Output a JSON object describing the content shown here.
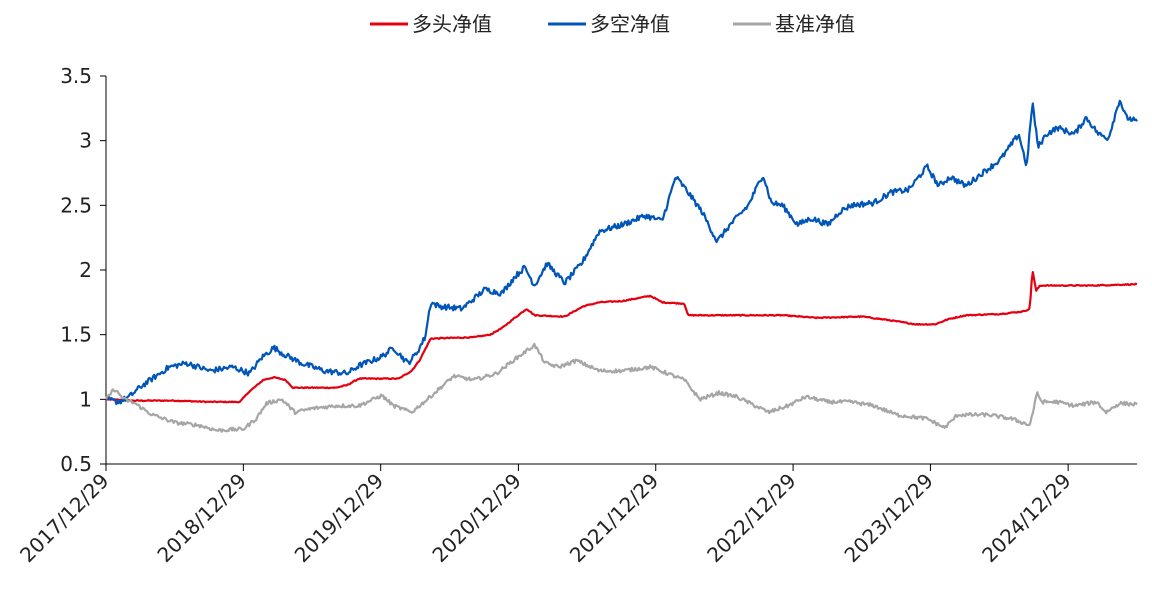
{
  "chart_data": {
    "type": "line",
    "title": "",
    "xlabel": "",
    "ylabel": "",
    "ylim": [
      0.5,
      3.5
    ],
    "yticks": [
      0.5,
      1,
      1.5,
      2,
      2.5,
      3,
      3.5
    ],
    "ytick_labels": [
      "0.5",
      "1",
      "1.5",
      "2",
      "2.5",
      "3",
      "3.5"
    ],
    "xlim": [
      "2017/12/29",
      "2025/06/30"
    ],
    "xticks": [
      "2017/12/29",
      "2018/12/29",
      "2019/12/29",
      "2020/12/29",
      "2021/12/29",
      "2022/12/29",
      "2023/12/29",
      "2024/12/29"
    ],
    "legend_position": "top-center",
    "grid": false,
    "series": [
      {
        "name": "多头净值",
        "color": "#e3000f",
        "points": [
          [
            "2017/12/29",
            1.0
          ],
          [
            "2018/03/15",
            0.99
          ],
          [
            "2018/07/01",
            0.99
          ],
          [
            "2018/10/01",
            0.98
          ],
          [
            "2018/12/20",
            0.98
          ],
          [
            "2019/01/10",
            1.05
          ],
          [
            "2019/02/20",
            1.15
          ],
          [
            "2019/03/20",
            1.17
          ],
          [
            "2019/04/20",
            1.15
          ],
          [
            "2019/05/10",
            1.09
          ],
          [
            "2019/09/01",
            1.09
          ],
          [
            "2019/10/01",
            1.11
          ],
          [
            "2019/11/01",
            1.16
          ],
          [
            "2020/02/15",
            1.16
          ],
          [
            "2020/03/20",
            1.22
          ],
          [
            "2020/04/10",
            1.3
          ],
          [
            "2020/05/10",
            1.47
          ],
          [
            "2020/09/01",
            1.48
          ],
          [
            "2020/10/15",
            1.5
          ],
          [
            "2020/11/15",
            1.55
          ],
          [
            "2020/12/15",
            1.62
          ],
          [
            "2021/01/20",
            1.7
          ],
          [
            "2021/02/10",
            1.65
          ],
          [
            "2021/05/01",
            1.64
          ],
          [
            "2021/06/20",
            1.72
          ],
          [
            "2021/08/01",
            1.75
          ],
          [
            "2021/10/01",
            1.76
          ],
          [
            "2021/12/15",
            1.8
          ],
          [
            "2022/01/15",
            1.75
          ],
          [
            "2022/03/15",
            1.74
          ],
          [
            "2022/03/25",
            1.65
          ],
          [
            "2022/12/01",
            1.65
          ],
          [
            "2023/03/01",
            1.63
          ],
          [
            "2023/07/01",
            1.64
          ],
          [
            "2023/09/15",
            1.61
          ],
          [
            "2023/11/20",
            1.58
          ],
          [
            "2024/01/10",
            1.58
          ],
          [
            "2024/02/15",
            1.62
          ],
          [
            "2024/04/01",
            1.65
          ],
          [
            "2024/07/01",
            1.66
          ],
          [
            "2024/09/01",
            1.68
          ],
          [
            "2024/09/18",
            1.7
          ],
          [
            "2024/09/25",
            2.0
          ],
          [
            "2024/10/05",
            1.84
          ],
          [
            "2024/10/15",
            1.88
          ],
          [
            "2025/03/01",
            1.88
          ],
          [
            "2025/06/30",
            1.89
          ]
        ]
      },
      {
        "name": "多空净值",
        "color": "#0055b8",
        "points": [
          [
            "2017/12/29",
            1.0
          ],
          [
            "2018/02/01",
            0.98
          ],
          [
            "2018/03/01",
            1.02
          ],
          [
            "2018/04/01",
            1.1
          ],
          [
            "2018/05/01",
            1.16
          ],
          [
            "2018/06/15",
            1.25
          ],
          [
            "2018/08/01",
            1.28
          ],
          [
            "2018/10/01",
            1.22
          ],
          [
            "2018/12/01",
            1.25
          ],
          [
            "2019/01/15",
            1.2
          ],
          [
            "2019/02/15",
            1.32
          ],
          [
            "2019/03/20",
            1.4
          ],
          [
            "2019/04/15",
            1.35
          ],
          [
            "2019/06/01",
            1.28
          ],
          [
            "2019/08/01",
            1.22
          ],
          [
            "2019/10/01",
            1.2
          ],
          [
            "2019/11/01",
            1.26
          ],
          [
            "2020/01/01",
            1.33
          ],
          [
            "2020/02/01",
            1.4
          ],
          [
            "2020/03/10",
            1.28
          ],
          [
            "2020/04/01",
            1.35
          ],
          [
            "2020/04/25",
            1.48
          ],
          [
            "2020/05/10",
            1.75
          ],
          [
            "2020/06/01",
            1.72
          ],
          [
            "2020/08/01",
            1.7
          ],
          [
            "2020/10/01",
            1.85
          ],
          [
            "2020/11/15",
            1.82
          ],
          [
            "2020/12/20",
            1.95
          ],
          [
            "2021/01/15",
            2.02
          ],
          [
            "2021/02/10",
            1.88
          ],
          [
            "2021/03/15",
            2.05
          ],
          [
            "2021/05/01",
            1.9
          ],
          [
            "2021/06/15",
            2.05
          ],
          [
            "2021/08/01",
            2.3
          ],
          [
            "2021/10/01",
            2.35
          ],
          [
            "2021/12/01",
            2.42
          ],
          [
            "2022/01/15",
            2.38
          ],
          [
            "2022/02/20",
            2.72
          ],
          [
            "2022/03/20",
            2.62
          ],
          [
            "2022/05/01",
            2.45
          ],
          [
            "2022/06/10",
            2.22
          ],
          [
            "2022/07/15",
            2.35
          ],
          [
            "2022/09/01",
            2.5
          ],
          [
            "2022/10/10",
            2.74
          ],
          [
            "2022/11/01",
            2.52
          ],
          [
            "2022/12/01",
            2.5
          ],
          [
            "2023/01/10",
            2.35
          ],
          [
            "2023/02/15",
            2.4
          ],
          [
            "2023/04/01",
            2.35
          ],
          [
            "2023/05/01",
            2.45
          ],
          [
            "2023/06/01",
            2.5
          ],
          [
            "2023/08/01",
            2.52
          ],
          [
            "2023/09/15",
            2.6
          ],
          [
            "2023/11/01",
            2.62
          ],
          [
            "2023/12/20",
            2.8
          ],
          [
            "2024/01/20",
            2.65
          ],
          [
            "2024/02/20",
            2.72
          ],
          [
            "2024/04/01",
            2.65
          ],
          [
            "2024/05/15",
            2.75
          ],
          [
            "2024/07/01",
            2.85
          ],
          [
            "2024/08/20",
            3.05
          ],
          [
            "2024/09/10",
            2.8
          ],
          [
            "2024/09/25",
            3.3
          ],
          [
            "2024/10/10",
            2.95
          ],
          [
            "2024/11/01",
            3.05
          ],
          [
            "2024/12/01",
            3.1
          ],
          [
            "2025/01/15",
            3.05
          ],
          [
            "2025/02/15",
            3.18
          ],
          [
            "2025/03/20",
            3.05
          ],
          [
            "2025/04/15",
            3.02
          ],
          [
            "2025/05/15",
            3.32
          ],
          [
            "2025/06/01",
            3.18
          ],
          [
            "2025/06/30",
            3.15
          ]
        ]
      },
      {
        "name": "基准净值",
        "color": "#a6a6a6",
        "points": [
          [
            "2017/12/29",
            1.0
          ],
          [
            "2018/01/20",
            1.08
          ],
          [
            "2018/02/15",
            1.0
          ],
          [
            "2018/03/15",
            0.97
          ],
          [
            "2018/05/01",
            0.88
          ],
          [
            "2018/07/01",
            0.82
          ],
          [
            "2018/09/01",
            0.8
          ],
          [
            "2018/10/20",
            0.76
          ],
          [
            "2018/12/29",
            0.77
          ],
          [
            "2019/02/01",
            0.85
          ],
          [
            "2019/03/01",
            0.97
          ],
          [
            "2019/04/10",
            1.0
          ],
          [
            "2019/05/15",
            0.9
          ],
          [
            "2019/07/01",
            0.93
          ],
          [
            "2019/09/01",
            0.95
          ],
          [
            "2019/11/01",
            0.95
          ],
          [
            "2020/01/01",
            1.03
          ],
          [
            "2020/02/01",
            0.95
          ],
          [
            "2020/03/20",
            0.9
          ],
          [
            "2020/05/01",
            1.0
          ],
          [
            "2020/07/10",
            1.18
          ],
          [
            "2020/09/01",
            1.15
          ],
          [
            "2020/11/01",
            1.2
          ],
          [
            "2020/12/15",
            1.3
          ],
          [
            "2021/02/10",
            1.42
          ],
          [
            "2021/03/10",
            1.28
          ],
          [
            "2021/04/15",
            1.25
          ],
          [
            "2021/06/01",
            1.3
          ],
          [
            "2021/08/01",
            1.22
          ],
          [
            "2021/10/01",
            1.22
          ],
          [
            "2021/12/15",
            1.25
          ],
          [
            "2022/03/15",
            1.15
          ],
          [
            "2022/04/25",
            1.0
          ],
          [
            "2022/06/15",
            1.05
          ],
          [
            "2022/08/01",
            1.02
          ],
          [
            "2022/10/25",
            0.9
          ],
          [
            "2022/12/15",
            0.95
          ],
          [
            "2023/02/01",
            1.02
          ],
          [
            "2023/04/01",
            0.98
          ],
          [
            "2023/06/01",
            0.98
          ],
          [
            "2023/08/01",
            0.95
          ],
          [
            "2023/10/01",
            0.88
          ],
          [
            "2023/12/20",
            0.85
          ],
          [
            "2024/02/05",
            0.78
          ],
          [
            "2024/03/10",
            0.88
          ],
          [
            "2024/06/01",
            0.88
          ],
          [
            "2024/08/01",
            0.85
          ],
          [
            "2024/09/18",
            0.8
          ],
          [
            "2024/10/08",
            1.05
          ],
          [
            "2024/10/20",
            0.98
          ],
          [
            "2024/12/01",
            0.98
          ],
          [
            "2025/01/15",
            0.95
          ],
          [
            "2025/03/15",
            0.98
          ],
          [
            "2025/04/08",
            0.9
          ],
          [
            "2025/05/15",
            0.97
          ],
          [
            "2025/06/30",
            0.96
          ]
        ]
      }
    ]
  }
}
